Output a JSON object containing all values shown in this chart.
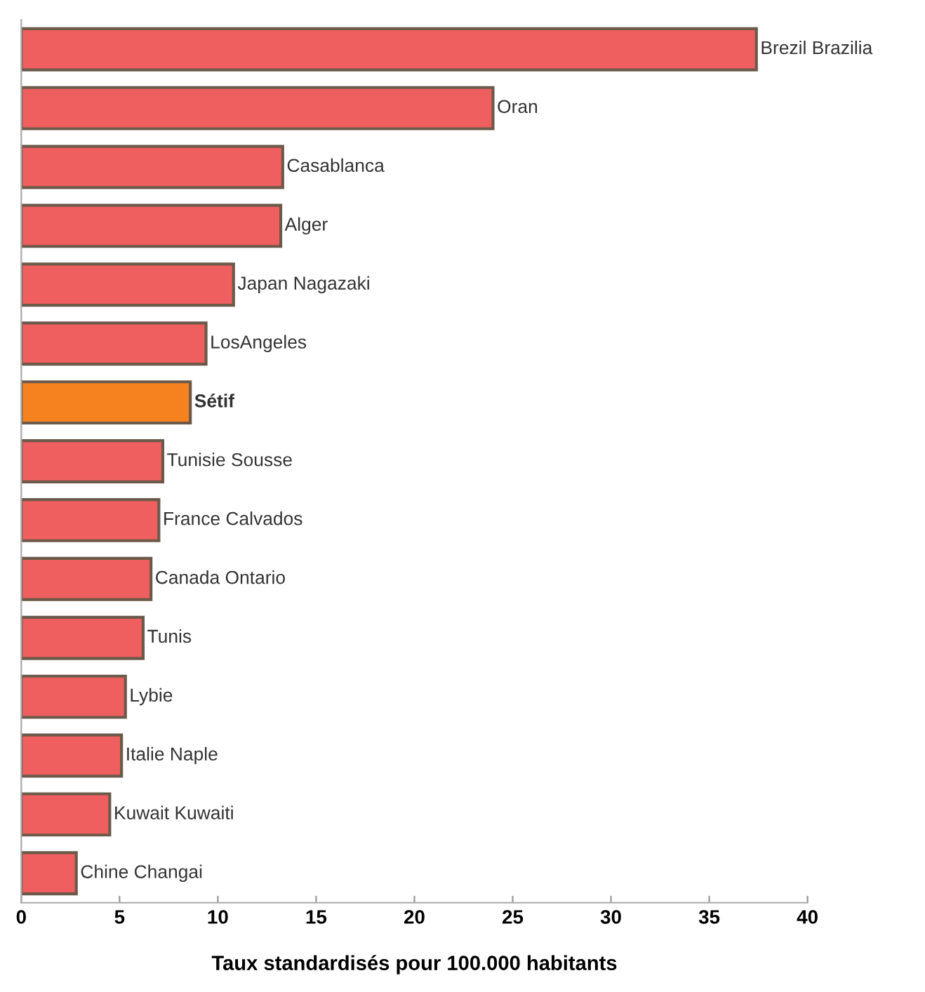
{
  "chart_data": {
    "type": "bar",
    "orientation": "horizontal",
    "xlabel": "Taux standardisés pour 100.000 habitants",
    "categories": [
      "Brezil Brazilia",
      "Oran",
      "Casablanca",
      "Alger",
      "Japan Nagazaki",
      "LosAngeles",
      "Sétif",
      "Tunisie Sousse",
      "France Calvados",
      "Canada Ontario",
      "Tunis",
      "Lybie",
      "Italie Naple",
      "Kuwait Kuwaiti",
      "Chine Changai"
    ],
    "values": [
      37.4,
      24.0,
      13.3,
      13.2,
      10.8,
      9.4,
      8.6,
      7.2,
      7.0,
      6.6,
      6.2,
      5.3,
      5.1,
      4.5,
      2.8
    ],
    "colors": [
      "#f05f60",
      "#f05f60",
      "#f05f60",
      "#f05f60",
      "#f05f60",
      "#f05f60",
      "#f5821f",
      "#f05f60",
      "#f05f60",
      "#f05f60",
      "#f05f60",
      "#f05f60",
      "#f05f60",
      "#f05f60",
      "#f05f60"
    ],
    "xlim": [
      0,
      40
    ],
    "xticks": [
      0,
      5,
      10,
      15,
      20,
      25,
      30,
      35,
      40
    ],
    "tick_labels": "x",
    "grid": false,
    "legend": false
  }
}
